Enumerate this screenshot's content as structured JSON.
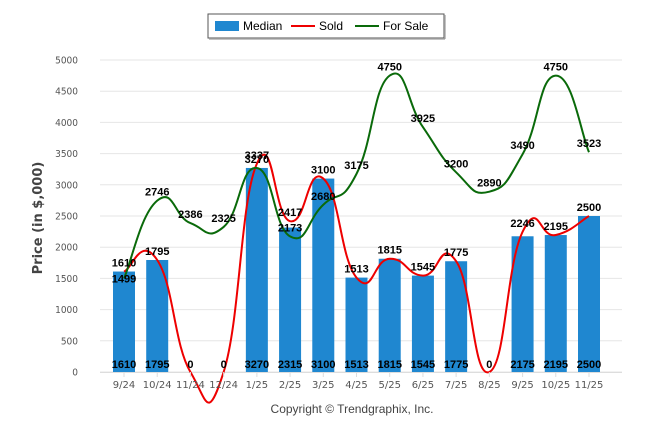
{
  "chart_data": {
    "type": "bar",
    "title": "",
    "xlabel": "",
    "ylabel": "Price (in $,000)",
    "ylim": [
      0,
      5000
    ],
    "yticks": [
      "0",
      "500",
      "1000",
      "1500",
      "2000",
      "2500",
      "3000",
      "3500",
      "4000",
      "4500",
      "5000"
    ],
    "grid": true,
    "legend_position": "top-center",
    "categories": [
      "9/24",
      "10/24",
      "11/24",
      "12/24",
      "1/25",
      "2/25",
      "3/25",
      "4/25",
      "5/25",
      "6/25",
      "7/25",
      "8/25",
      "9/25",
      "10/25",
      "11/25"
    ],
    "series": [
      {
        "name": "Median",
        "kind": "bar",
        "color": "#1f87d0",
        "values": [
          1610,
          1795,
          0,
          0,
          3270,
          2315,
          3100,
          1513,
          1815,
          1545,
          1775,
          0,
          2175,
          2195,
          2500
        ],
        "labels": [
          "1610",
          "1795",
          "0",
          "0",
          "3270",
          "2315",
          "3100",
          "1513",
          "1815",
          "1545",
          "1775",
          "0",
          "2175",
          "2195",
          "2500"
        ]
      },
      {
        "name": "Sold",
        "kind": "line",
        "color": "#ee0000",
        "values": [
          1610,
          1795,
          0,
          0,
          3337,
          2417,
          3100,
          1513,
          1815,
          1545,
          1775,
          0,
          2246,
          2195,
          2500
        ],
        "labels": [
          "1610",
          "1795",
          "",
          "",
          "3337",
          "2417",
          "3100",
          "1513",
          "1815",
          "1545",
          "1775",
          "",
          "2246",
          "2195",
          "2500"
        ]
      },
      {
        "name": "For Sale",
        "kind": "line",
        "color": "#0a6a0a",
        "values": [
          1499,
          2746,
          2386,
          2325,
          3270,
          2173,
          2680,
          3175,
          4750,
          3925,
          3200,
          2890,
          3490,
          4750,
          3523
        ],
        "labels": [
          "1499",
          "2746",
          "2386",
          "2325",
          "3270",
          "2173",
          "2680",
          "3175",
          "4750",
          "3925",
          "3200",
          "2890",
          "3490",
          "4750",
          "3523"
        ]
      }
    ]
  },
  "legend": {
    "median": "Median",
    "sold": "Sold",
    "for_sale": "For Sale"
  },
  "footer": {
    "copyright": "Copyright © Trendgraphix, Inc."
  }
}
